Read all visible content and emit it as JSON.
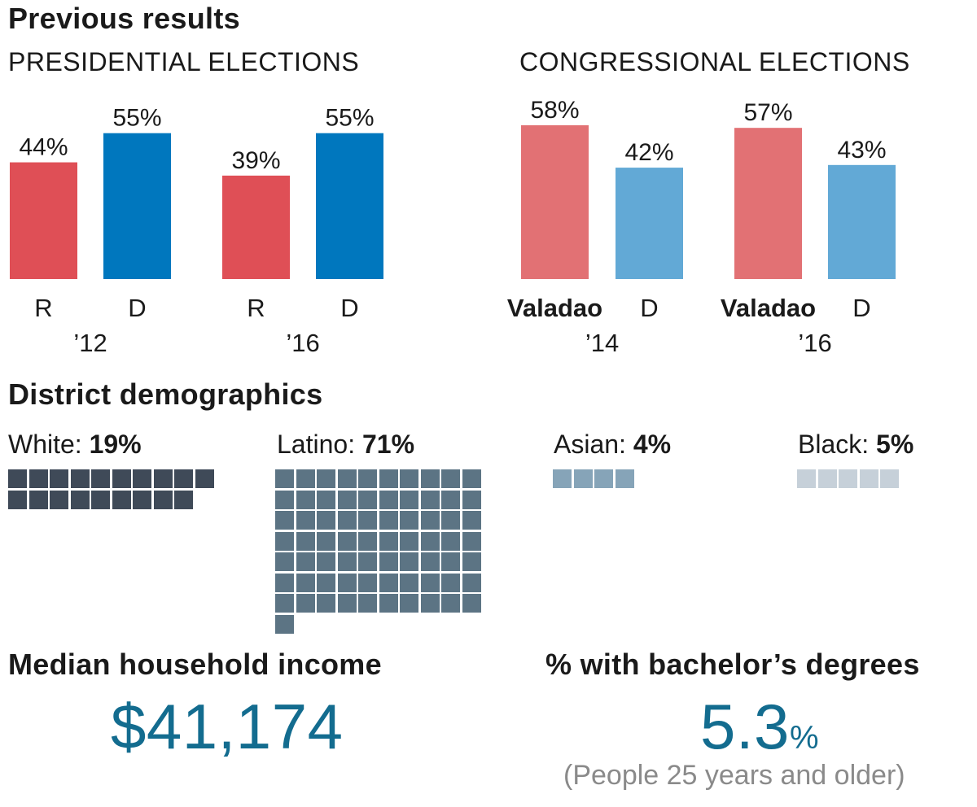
{
  "sections": {
    "previous_title": "Previous results",
    "presidential_title": "PRESIDENTIAL ELECTIONS",
    "congressional_title": "CONGRESSIONAL ELECTIONS",
    "demographics_title": "District demographics",
    "income_title": "Median household income",
    "bachelor_title": "% with bachelor’s degrees"
  },
  "chart_data": [
    {
      "type": "bar",
      "title": "PRESIDENTIAL ELECTIONS",
      "ylim": [
        0,
        100
      ],
      "groups": [
        {
          "year": "’12",
          "bars": [
            {
              "label": "R",
              "value": 44,
              "color": "#df4f56"
            },
            {
              "label": "D",
              "value": 55,
              "color": "#0077be"
            }
          ]
        },
        {
          "year": "’16",
          "bars": [
            {
              "label": "R",
              "value": 39,
              "color": "#df4f56"
            },
            {
              "label": "D",
              "value": 55,
              "color": "#0077be"
            }
          ]
        }
      ]
    },
    {
      "type": "bar",
      "title": "CONGRESSIONAL ELECTIONS",
      "ylim": [
        0,
        100
      ],
      "groups": [
        {
          "year": "’14",
          "bars": [
            {
              "label": "Valadao",
              "value": 58,
              "color": "#e27174"
            },
            {
              "label": "D",
              "value": 42,
              "color": "#62a9d6"
            }
          ]
        },
        {
          "year": "’16",
          "bars": [
            {
              "label": "Valadao",
              "value": 57,
              "color": "#e27174"
            },
            {
              "label": "D",
              "value": 43,
              "color": "#62a9d6"
            }
          ]
        }
      ]
    }
  ],
  "demographics": [
    {
      "name": "White:",
      "pct_label": "19%",
      "value": 19,
      "color": "#3f4a58"
    },
    {
      "name": "Latino:",
      "pct_label": "71%",
      "value": 71,
      "color": "#5c7484"
    },
    {
      "name": "Asian:",
      "pct_label": "4%",
      "value": 4,
      "color": "#86a4b8"
    },
    {
      "name": "Black:",
      "pct_label": "5%",
      "value": 5,
      "color": "#c6d0d9"
    }
  ],
  "income": {
    "value": "$41,174"
  },
  "bachelor": {
    "value": "5.3",
    "unit": "%",
    "note": "(People 25 years and older)"
  },
  "colors": {
    "accent": "#136c8f"
  }
}
